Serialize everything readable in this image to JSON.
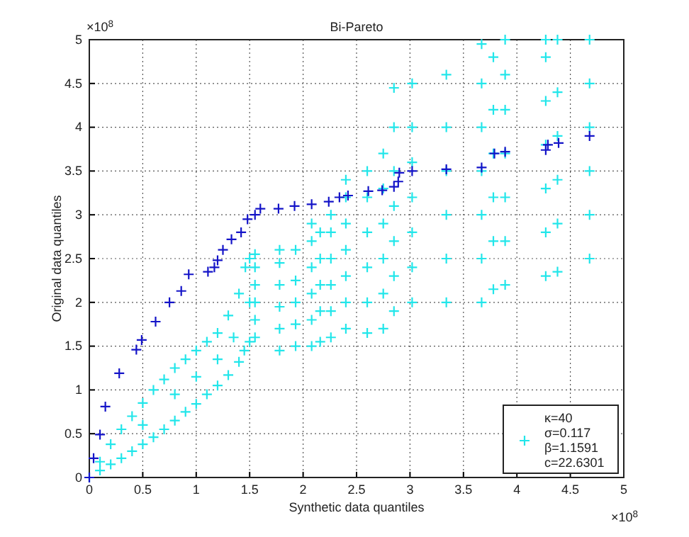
{
  "chart_data": {
    "type": "scatter",
    "title": "Bi-Pareto",
    "xlabel": "Synthetic data quantiles",
    "ylabel": "Original data quantiles",
    "annotations": [
      "×10$^{8}$",
      "×10$^{8}$"
    ],
    "xlim": [
      0,
      5
    ],
    "ylim": [
      0,
      5
    ],
    "xticks": [
      0,
      0.5,
      1,
      1.5,
      2,
      2.5,
      3,
      3.5,
      4,
      4.5,
      5
    ],
    "yticks": [
      0,
      0.5,
      1,
      1.5,
      2,
      2.5,
      3,
      3.5,
      4,
      4.5,
      5
    ],
    "grid": true,
    "legend": "bottom right",
    "marker": "cross",
    "series": [
      {
        "name": "κ=40\nσ=0.117\nβ=1.1591\nc=22.6301",
        "color": "#22e6ea",
        "x": [
          0,
          0.1,
          0.1,
          0.2,
          0.2,
          0.3,
          0.3,
          0.4,
          0.4,
          0.5,
          0.5,
          0.6,
          0.6,
          0.7,
          0.7,
          0.8,
          0.8,
          0.9,
          0.9,
          1.0,
          1.0,
          1.1,
          1.1,
          1.2,
          1.2,
          1.3,
          1.3,
          1.4,
          1.4,
          1.45,
          1.46,
          0.5,
          0.8,
          1.0,
          1.2,
          1.35,
          1.5,
          1.5,
          1.5,
          1.55,
          1.55,
          1.55,
          1.55,
          1.55,
          1.55,
          1.78,
          1.78,
          1.78,
          1.78,
          1.78,
          1.78,
          1.93,
          1.93,
          1.93,
          1.93,
          1.93,
          2.08,
          2.08,
          2.08,
          2.08,
          2.08,
          2.08,
          2.16,
          2.16,
          2.16,
          2.16,
          2.16,
          2.26,
          2.26,
          2.26,
          2.26,
          2.26,
          2.26,
          2.4,
          2.4,
          2.4,
          2.4,
          2.4,
          2.4,
          2.4,
          2.6,
          2.6,
          2.6,
          2.6,
          2.6,
          2.6,
          2.75,
          2.75,
          2.75,
          2.75,
          2.75,
          2.75,
          2.85,
          2.85,
          2.85,
          2.85,
          2.85,
          2.85,
          2.85,
          3.02,
          3.02,
          3.02,
          3.02,
          3.02,
          3.02,
          3.02,
          3.34,
          3.34,
          3.34,
          3.34,
          3.34,
          3.34,
          3.67,
          3.67,
          3.67,
          3.67,
          3.67,
          3.67,
          3.67,
          3.78,
          3.78,
          3.78,
          3.78,
          3.78,
          3.78,
          3.89,
          3.89,
          3.89,
          3.89,
          3.89,
          3.89,
          3.89,
          4.27,
          4.27,
          4.27,
          4.27,
          4.27,
          4.27,
          4.27,
          4.38,
          4.38,
          4.38,
          4.38,
          4.38,
          4.38,
          4.68,
          4.68,
          4.68,
          4.68,
          4.68,
          4.68
        ],
        "values": [
          0,
          0.08,
          0.18,
          0.15,
          0.38,
          0.22,
          0.55,
          0.3,
          0.7,
          0.38,
          0.85,
          0.46,
          1.0,
          0.55,
          1.12,
          0.65,
          1.25,
          0.75,
          1.35,
          0.84,
          1.45,
          0.95,
          1.55,
          1.05,
          1.65,
          1.17,
          1.85,
          1.32,
          2.1,
          1.45,
          2.4,
          0.6,
          0.95,
          1.15,
          1.35,
          1.6,
          1.55,
          2.0,
          2.5,
          1.6,
          1.8,
          2.0,
          2.2,
          2.4,
          2.55,
          1.45,
          1.7,
          1.95,
          2.2,
          2.45,
          2.6,
          1.5,
          1.75,
          2.0,
          2.25,
          2.6,
          1.5,
          1.8,
          2.1,
          2.4,
          2.7,
          2.9,
          1.55,
          1.9,
          2.2,
          2.5,
          2.8,
          1.6,
          1.9,
          2.2,
          2.5,
          2.8,
          3.0,
          1.7,
          2.0,
          2.3,
          2.6,
          2.9,
          3.2,
          3.4,
          1.65,
          2.0,
          2.4,
          2.8,
          3.2,
          3.5,
          1.7,
          2.1,
          2.5,
          2.9,
          3.3,
          3.7,
          1.9,
          2.3,
          2.7,
          3.1,
          3.5,
          4.0,
          4.45,
          2.0,
          2.4,
          2.8,
          3.2,
          3.6,
          4.0,
          4.5,
          2.0,
          2.5,
          3.0,
          3.5,
          4.0,
          4.6,
          2.0,
          2.5,
          3.0,
          3.5,
          4.0,
          4.5,
          4.95,
          2.15,
          2.7,
          3.2,
          3.7,
          4.2,
          4.8,
          2.2,
          2.7,
          3.2,
          3.7,
          4.2,
          4.6,
          5.0,
          2.3,
          2.8,
          3.3,
          3.8,
          4.3,
          4.8,
          5.0,
          2.35,
          2.9,
          3.4,
          3.9,
          4.4,
          5.0,
          2.5,
          3.0,
          3.5,
          4.0,
          4.5,
          5.0
        ]
      },
      {
        "color": "#1414c8",
        "x": [
          0,
          0.04,
          0.1,
          0.15,
          0.28,
          0.44,
          0.49,
          0.62,
          0.75,
          0.86,
          0.93,
          1.11,
          1.17,
          1.2,
          1.25,
          1.33,
          1.42,
          1.48,
          1.55,
          1.6,
          1.77,
          1.92,
          2.08,
          2.24,
          2.34,
          2.42,
          2.61,
          2.74,
          2.85,
          2.89,
          2.9,
          3.02,
          3.34,
          3.67,
          3.79,
          3.89,
          4.27,
          4.29,
          4.39,
          4.68
        ],
        "values": [
          0,
          0.22,
          0.49,
          0.81,
          1.19,
          1.46,
          1.57,
          1.78,
          2.0,
          2.13,
          2.32,
          2.35,
          2.4,
          2.48,
          2.6,
          2.72,
          2.8,
          2.95,
          3.0,
          3.07,
          3.07,
          3.1,
          3.12,
          3.15,
          3.2,
          3.22,
          3.27,
          3.28,
          3.32,
          3.38,
          3.48,
          3.5,
          3.52,
          3.54,
          3.7,
          3.72,
          3.74,
          3.8,
          3.82,
          3.9
        ]
      }
    ]
  }
}
